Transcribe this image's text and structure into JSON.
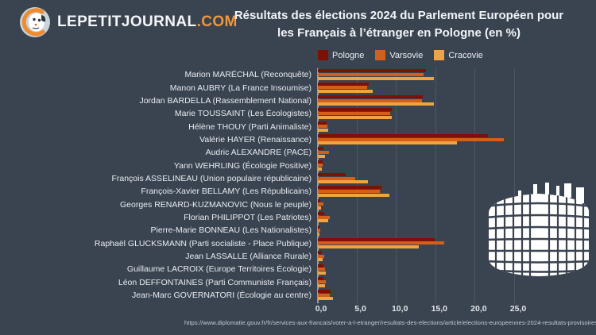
{
  "header": {
    "logo_text": "LEPETITJOURNAL",
    "logo_suffix": ".COM",
    "title_line1": "Résultats des élections 2024 du Parlement Européen pour",
    "title_line2": "les Français à l’étranger en Pologne (en %)"
  },
  "colors": {
    "background": "#3a4350",
    "pologne": "#7d1106",
    "varsovie": "#d2601c",
    "cracovie": "#efa342",
    "logo_accent": "#f0963c",
    "text": "#e8edf2"
  },
  "chart_data": {
    "type": "bar",
    "orientation": "horizontal",
    "title": "Résultats des élections 2024 du Parlement Européen pour les Français à l’étranger en Pologne (en %)",
    "xlabel": "",
    "ylabel": "",
    "xlim": [
      0,
      25
    ],
    "x_tick_values": [
      0,
      5,
      10,
      15,
      20,
      25
    ],
    "x_tick_labels": [
      "0,0",
      "5,0",
      "10,0",
      "15,0",
      "20,0",
      "25,0"
    ],
    "grid": true,
    "legend_position": "top",
    "categories": [
      "Marion MARÉCHAL (Reconquête)",
      "Manon AUBRY (La France Insoumise)",
      "Jordan BARDELLA (Rassemblement National)",
      "Marie TOUSSAINT (Les Écologistes)",
      "Hélène THOUY (Parti Animaliste)",
      "Valérie HAYER (Renaissance)",
      "Audric ALEXANDRE (PACE)",
      "Yann WEHRLING (Écologie Positive)",
      "François ASSELINEAU (Union populaire républicaine)",
      "François-Xavier BELLAMY (Les Républicains)",
      "Georges RENARD-KUZMANOVIC (Nous le peuple)",
      "Florian PHILIPPOT (Les Patriotes)",
      "Pierre-Marie BONNEAU (Les Nationalistes)",
      "Raphaël GLUCKSMANN (Parti socialiste - Place Publique)",
      "Jean LASSALLE (Alliance Rurale)",
      "Guillaume LACROIX (Europe Territoires Écologie)",
      "Léon DEFFONTAINES (Parti Communiste Français)",
      "Jean-Marc GOVERNATORI (Écologie au centre)"
    ],
    "series": [
      {
        "name": "Pologne",
        "color": "#7d1106",
        "values": [
          13.7,
          6.5,
          13.3,
          9.4,
          1.1,
          21.6,
          0.7,
          0.6,
          3.5,
          8.1,
          0.3,
          0.8,
          0.2,
          14.9,
          0.5,
          0.7,
          0.7,
          1.6
        ]
      },
      {
        "name": "Varsovie",
        "color": "#d2601c",
        "values": [
          13.4,
          6.3,
          13.2,
          9.2,
          1.2,
          23.6,
          1.4,
          0.6,
          4.7,
          7.9,
          0.7,
          1.5,
          0.3,
          16.0,
          0.8,
          0.9,
          1.0,
          1.5
        ]
      },
      {
        "name": "Cracovie",
        "color": "#efa342",
        "values": [
          14.7,
          7.0,
          14.7,
          9.4,
          1.3,
          17.6,
          0.9,
          0.5,
          6.4,
          9.1,
          0.4,
          1.3,
          0.2,
          12.8,
          0.6,
          1.0,
          0.9,
          1.9
        ]
      }
    ]
  },
  "footer": {
    "source_url": "https://www.diplomatie.gouv.fr/fr/services-aux-francais/voter-a-l-etranger/resultats-des-elections/article/elections-europeennes-2024-resultats-provisoires"
  }
}
